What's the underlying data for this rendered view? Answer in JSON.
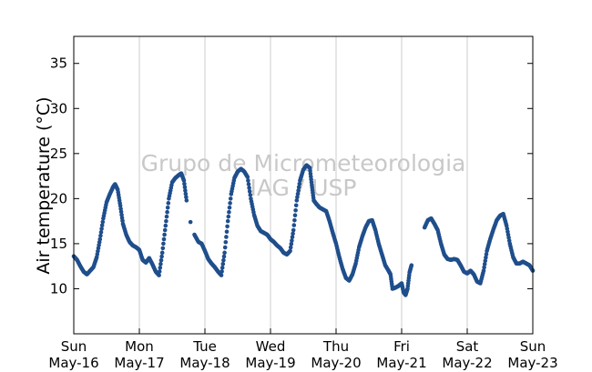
{
  "chart_data": {
    "type": "scatter",
    "title": "",
    "xlabel": "",
    "ylabel": "Air temperature (°C)",
    "watermark": [
      "Grupo de Micrometeorologia",
      "IAG / USP"
    ],
    "xlim": [
      0,
      7
    ],
    "ylim": [
      5,
      38
    ],
    "x_unit": "days since Sun May-16 00:00",
    "x_ticks": [
      {
        "value": 0,
        "day": "Sun",
        "date": "May-16"
      },
      {
        "value": 1,
        "day": "Mon",
        "date": "May-17"
      },
      {
        "value": 2,
        "day": "Tue",
        "date": "May-18"
      },
      {
        "value": 3,
        "day": "Wed",
        "date": "May-19"
      },
      {
        "value": 4,
        "day": "Thu",
        "date": "May-20"
      },
      {
        "value": 5,
        "day": "Fri",
        "date": "May-21"
      },
      {
        "value": 6,
        "day": "Sat",
        "date": "May-22"
      },
      {
        "value": 7,
        "day": "Sun",
        "date": "May-23"
      }
    ],
    "y_ticks": [
      10,
      15,
      20,
      25,
      30,
      35
    ],
    "grid": "vertical",
    "marker_color": "#1f4e8c",
    "series": [
      {
        "name": "",
        "points": [
          [
            0.0,
            13.6
          ],
          [
            0.05,
            13.2
          ],
          [
            0.1,
            12.5
          ],
          [
            0.15,
            11.9
          ],
          [
            0.2,
            11.6
          ],
          [
            0.25,
            12.0
          ],
          [
            0.3,
            12.4
          ],
          [
            0.35,
            13.5
          ],
          [
            0.4,
            15.5
          ],
          [
            0.45,
            17.8
          ],
          [
            0.5,
            19.6
          ],
          [
            0.55,
            20.5
          ],
          [
            0.6,
            21.3
          ],
          [
            0.63,
            21.6
          ],
          [
            0.67,
            21.0
          ],
          [
            0.71,
            19.2
          ],
          [
            0.75,
            17.2
          ],
          [
            0.8,
            16.0
          ],
          [
            0.85,
            15.2
          ],
          [
            0.9,
            14.8
          ],
          [
            0.95,
            14.6
          ],
          [
            1.0,
            14.3
          ],
          [
            1.05,
            13.2
          ],
          [
            1.1,
            12.9
          ],
          [
            1.15,
            13.4
          ],
          [
            1.2,
            12.7
          ],
          [
            1.25,
            11.9
          ],
          [
            1.3,
            11.5
          ],
          [
            1.35,
            14.0
          ],
          [
            1.4,
            17.0
          ],
          [
            1.45,
            20.0
          ],
          [
            1.5,
            21.8
          ],
          [
            1.55,
            22.3
          ],
          [
            1.6,
            22.6
          ],
          [
            1.64,
            22.8
          ],
          [
            1.68,
            22.0
          ],
          [
            1.72,
            19.8
          ],
          [
            1.78,
            17.4
          ],
          [
            1.84,
            16.0
          ],
          [
            1.9,
            15.2
          ],
          [
            1.95,
            15.0
          ],
          [
            2.0,
            14.2
          ],
          [
            2.05,
            13.3
          ],
          [
            2.1,
            12.8
          ],
          [
            2.15,
            12.4
          ],
          [
            2.2,
            11.9
          ],
          [
            2.25,
            11.5
          ],
          [
            2.3,
            14.0
          ],
          [
            2.35,
            17.5
          ],
          [
            2.4,
            20.5
          ],
          [
            2.45,
            22.3
          ],
          [
            2.5,
            23.0
          ],
          [
            2.55,
            23.3
          ],
          [
            2.6,
            23.0
          ],
          [
            2.65,
            22.4
          ],
          [
            2.7,
            20.0
          ],
          [
            2.75,
            18.2
          ],
          [
            2.8,
            17.0
          ],
          [
            2.85,
            16.4
          ],
          [
            2.9,
            16.2
          ],
          [
            2.95,
            16.0
          ],
          [
            3.0,
            15.5
          ],
          [
            3.05,
            15.2
          ],
          [
            3.1,
            14.8
          ],
          [
            3.15,
            14.5
          ],
          [
            3.2,
            14.0
          ],
          [
            3.25,
            13.8
          ],
          [
            3.3,
            14.2
          ],
          [
            3.35,
            16.5
          ],
          [
            3.4,
            19.8
          ],
          [
            3.45,
            22.0
          ],
          [
            3.5,
            23.2
          ],
          [
            3.55,
            23.7
          ],
          [
            3.6,
            23.4
          ],
          [
            3.63,
            21.5
          ],
          [
            3.66,
            19.8
          ],
          [
            3.7,
            19.4
          ],
          [
            3.75,
            19.0
          ],
          [
            3.8,
            18.8
          ],
          [
            3.85,
            18.6
          ],
          [
            3.9,
            17.5
          ],
          [
            3.95,
            16.2
          ],
          [
            4.0,
            15.0
          ],
          [
            4.05,
            13.5
          ],
          [
            4.1,
            12.2
          ],
          [
            4.15,
            11.2
          ],
          [
            4.2,
            10.9
          ],
          [
            4.25,
            11.6
          ],
          [
            4.3,
            12.8
          ],
          [
            4.35,
            14.6
          ],
          [
            4.4,
            15.8
          ],
          [
            4.45,
            16.8
          ],
          [
            4.5,
            17.5
          ],
          [
            4.55,
            17.6
          ],
          [
            4.6,
            16.5
          ],
          [
            4.65,
            15.0
          ],
          [
            4.7,
            13.8
          ],
          [
            4.75,
            12.6
          ],
          [
            4.8,
            12.0
          ],
          [
            4.83,
            11.6
          ],
          [
            4.86,
            10.0
          ],
          [
            4.9,
            10.1
          ],
          [
            4.95,
            10.3
          ],
          [
            5.0,
            10.6
          ],
          [
            5.03,
            9.6
          ],
          [
            5.06,
            9.3
          ],
          [
            5.09,
            10.0
          ],
          [
            5.12,
            11.8
          ],
          [
            5.15,
            12.6
          ],
          [
            5.35,
            16.8
          ],
          [
            5.4,
            17.6
          ],
          [
            5.45,
            17.8
          ],
          [
            5.5,
            17.2
          ],
          [
            5.55,
            16.5
          ],
          [
            5.6,
            15.0
          ],
          [
            5.65,
            13.8
          ],
          [
            5.7,
            13.3
          ],
          [
            5.75,
            13.2
          ],
          [
            5.8,
            13.3
          ],
          [
            5.85,
            13.2
          ],
          [
            5.9,
            12.6
          ],
          [
            5.95,
            11.9
          ],
          [
            6.0,
            11.7
          ],
          [
            6.05,
            12.0
          ],
          [
            6.1,
            11.6
          ],
          [
            6.15,
            10.8
          ],
          [
            6.2,
            10.6
          ],
          [
            6.25,
            12.0
          ],
          [
            6.3,
            14.2
          ],
          [
            6.35,
            15.5
          ],
          [
            6.4,
            16.6
          ],
          [
            6.45,
            17.6
          ],
          [
            6.5,
            18.1
          ],
          [
            6.55,
            18.3
          ],
          [
            6.6,
            17.0
          ],
          [
            6.65,
            15.0
          ],
          [
            6.7,
            13.5
          ],
          [
            6.75,
            12.8
          ],
          [
            6.8,
            12.8
          ],
          [
            6.85,
            13.0
          ],
          [
            6.9,
            12.8
          ],
          [
            6.95,
            12.6
          ],
          [
            7.0,
            12.0
          ]
        ]
      }
    ]
  }
}
